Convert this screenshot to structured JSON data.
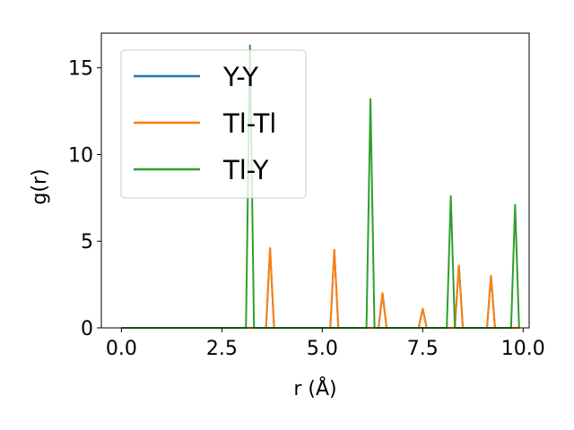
{
  "chart_data": {
    "type": "line",
    "xlabel": "r (Å)",
    "ylabel": "g(r)",
    "xlim": [
      -0.5,
      10.15
    ],
    "ylim": [
      0,
      17
    ],
    "xticks": [
      0.0,
      2.5,
      5.0,
      7.5,
      10.0
    ],
    "xtick_labels": [
      "0.0",
      "2.5",
      "5.0",
      "7.5",
      "10.0"
    ],
    "yticks": [
      0,
      5,
      10,
      15
    ],
    "ytick_labels": [
      "0",
      "5",
      "10",
      "15"
    ],
    "grid": false,
    "legend_position": "top-left",
    "series": [
      {
        "name": "Y-Y",
        "color": "#1f77b4",
        "x": [
          0.0,
          3.6,
          3.7,
          3.8,
          5.2,
          5.3,
          5.4,
          6.4,
          6.5,
          6.6,
          7.4,
          7.5,
          7.6,
          8.3,
          8.4,
          8.5,
          9.1,
          9.2,
          9.3,
          9.9
        ],
        "y": [
          0,
          0,
          4.6,
          0,
          0,
          4.5,
          0,
          0,
          2.0,
          0,
          0,
          1.1,
          0,
          0,
          3.6,
          0,
          0,
          3.0,
          0,
          0
        ]
      },
      {
        "name": "Tl-Tl",
        "color": "#ff7f0e",
        "x": [
          0.0,
          3.6,
          3.7,
          3.8,
          5.2,
          5.3,
          5.4,
          6.4,
          6.5,
          6.6,
          7.4,
          7.5,
          7.6,
          8.3,
          8.4,
          8.5,
          9.1,
          9.2,
          9.3,
          9.9
        ],
        "y": [
          0,
          0,
          4.6,
          0,
          0,
          4.5,
          0,
          0,
          2.0,
          0,
          0,
          1.1,
          0,
          0,
          3.6,
          0,
          0,
          3.0,
          0,
          0
        ]
      },
      {
        "name": "Tl-Y",
        "color": "#2ca02c",
        "x": [
          0.0,
          3.1,
          3.2,
          3.3,
          6.1,
          6.2,
          6.3,
          8.1,
          8.2,
          8.3,
          9.7,
          9.8,
          9.9
        ],
        "y": [
          0,
          0,
          16.3,
          0,
          0,
          13.2,
          0,
          0,
          7.6,
          0,
          0,
          7.1,
          0
        ]
      }
    ]
  }
}
